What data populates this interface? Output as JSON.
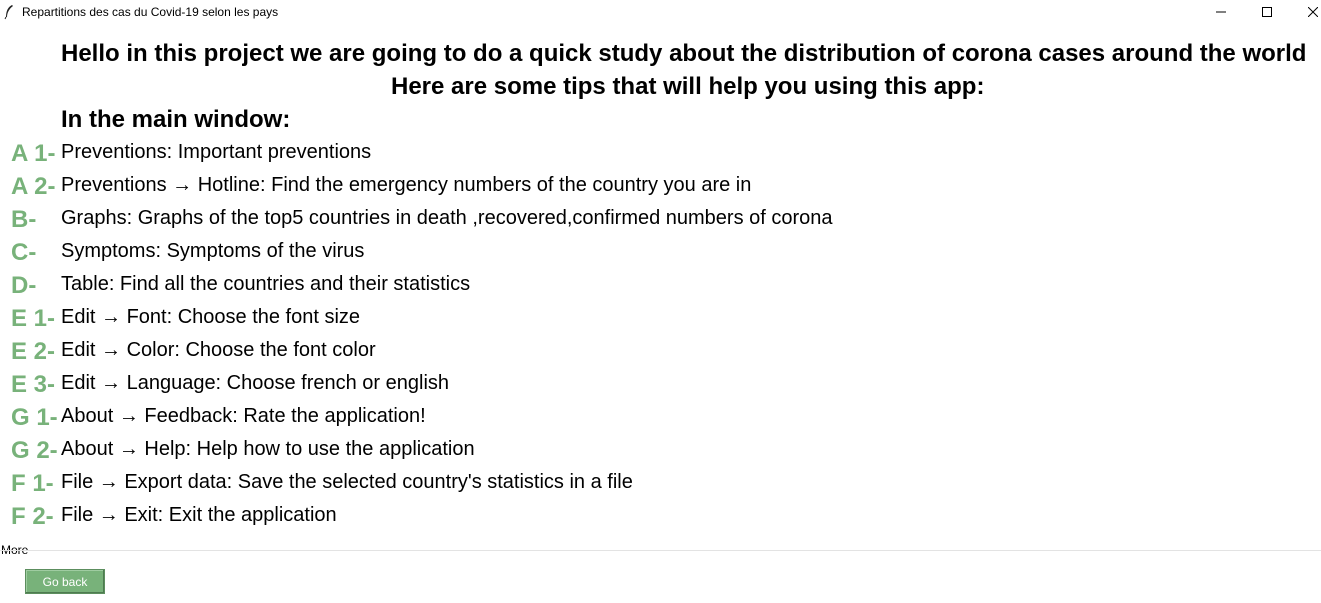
{
  "window": {
    "title": "Repartitions des cas du Covid-19 selon les pays",
    "icon": "feather-icon",
    "controls": [
      "minimize-icon",
      "maximize-icon",
      "close-icon"
    ]
  },
  "headings": {
    "intro": "Hello in this project we are going to do a quick study about the distribution of corona cases around the world",
    "tips_intro": "Here are some tips that will help you using this app:",
    "section": "In the main window:"
  },
  "tips": [
    {
      "letter": "A 1-",
      "text": "Preventions: Important preventions"
    },
    {
      "letter": "A 2-",
      "text": "Preventions → Hotline: Find the emergency numbers of the country you are in"
    },
    {
      "letter": "B-",
      "text": "Graphs: Graphs of the top5 countries in death ,recovered,confirmed numbers of corona"
    },
    {
      "letter": "C-",
      "text": "Symptoms: Symptoms of the virus"
    },
    {
      "letter": "D-",
      "text": "Table: Find all the countries and their statistics"
    },
    {
      "letter": "E 1-",
      "text": "Edit → Font: Choose the font size"
    },
    {
      "letter": "E 2-",
      "text": "Edit → Color: Choose the font color"
    },
    {
      "letter": "E 3-",
      "text": "Edit → Language: Choose french or english"
    },
    {
      "letter": "G 1-",
      "text": "About → Feedback: Rate the application!"
    },
    {
      "letter": "G 2-",
      "text": "About → Help: Help how to use the application"
    },
    {
      "letter": "F 1-",
      "text": "File → Export data: Save the selected country's statistics in a file"
    },
    {
      "letter": "F 2-",
      "text": "File → Exit: Exit the application"
    }
  ],
  "footer": {
    "more_label": "More",
    "go_back_label": "Go back"
  },
  "colors": {
    "accent": "#78b27a"
  }
}
